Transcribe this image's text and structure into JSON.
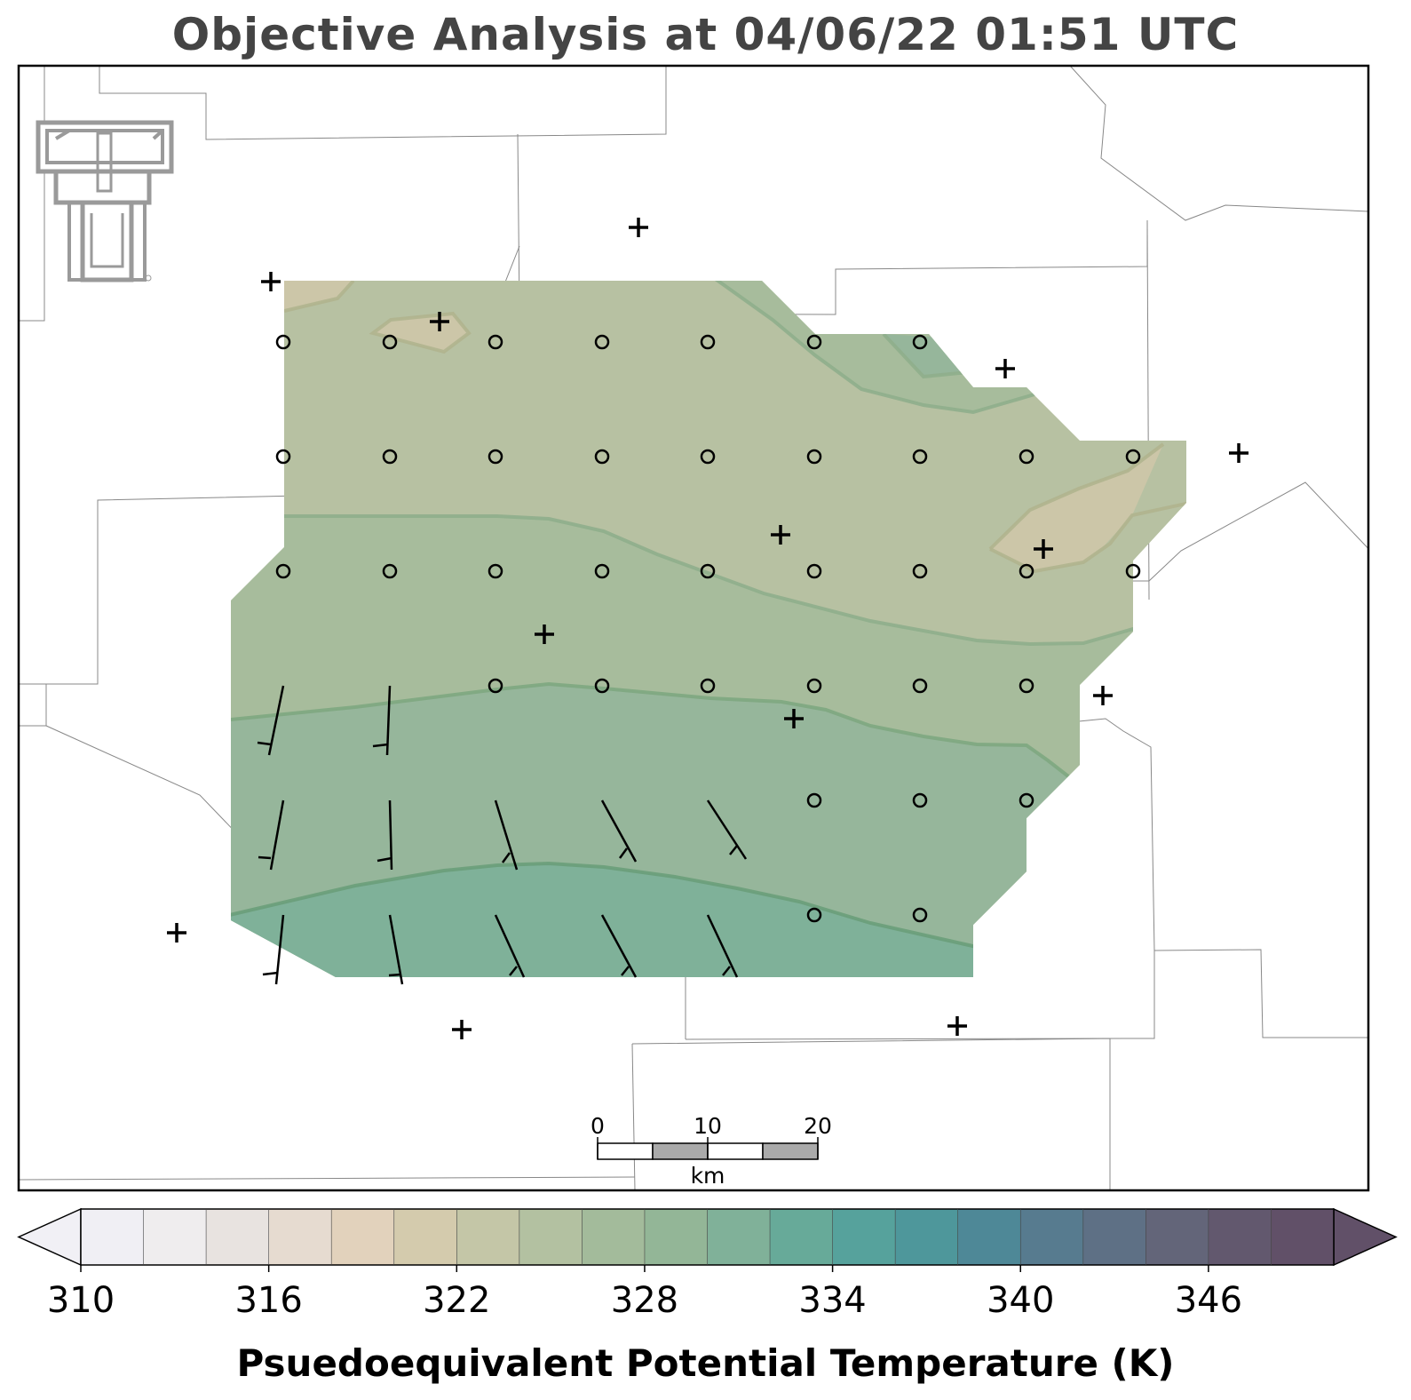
{
  "title": "Objective Analysis at 04/06/22 01:51 UTC",
  "colorbar": {
    "label": "Psuedoequivalent Potential Temperature (K)",
    "min": 310,
    "max": 350,
    "step": 2,
    "tick_values": [
      310,
      316,
      322,
      328,
      334,
      340,
      346
    ],
    "tick_labels": [
      "310",
      "316",
      "322",
      "328",
      "334",
      "340",
      "346"
    ],
    "colors": [
      "#f0eff4",
      "#efedee",
      "#e8e3e0",
      "#e6dbd0",
      "#e2d2bc",
      "#d4cbad",
      "#c4c6a7",
      "#b3c1a1",
      "#a3bb9b",
      "#93b697",
      "#80b199",
      "#67aa99",
      "#56a29c",
      "#4e979b",
      "#4e8897",
      "#577b8f",
      "#5e7085",
      "#636579",
      "#62586e",
      "#615068"
    ],
    "extend_below_color": "#f1f0f5",
    "extend_above_color": "#615068"
  },
  "scale_bar": {
    "unit": "km",
    "labels": [
      "0",
      "10",
      "20"
    ]
  },
  "logo": {
    "name": "texas-tech-double-t-logo"
  },
  "analysis_region": {
    "contour_levels": [
      320,
      322,
      324,
      326,
      328
    ],
    "fill_colors": {
      "320": "#ccc6a8",
      "322": "#b7c1a2",
      "324": "#a7bc9c",
      "326": "#96b69b",
      "328": "#7fb199"
    }
  },
  "stations": [
    {
      "id": "s1",
      "marker": "+"
    },
    {
      "id": "s2",
      "marker": "+"
    },
    {
      "id": "s3",
      "marker": "+"
    },
    {
      "id": "s4",
      "marker": "+"
    },
    {
      "id": "s5",
      "marker": "+"
    },
    {
      "id": "s6",
      "marker": "+"
    },
    {
      "id": "s7",
      "marker": "+"
    },
    {
      "id": "s8",
      "marker": "+"
    },
    {
      "id": "s9",
      "marker": "+"
    },
    {
      "id": "s10",
      "marker": "+"
    },
    {
      "id": "s11",
      "marker": "+"
    },
    {
      "id": "s12",
      "marker": "+"
    },
    {
      "id": "s13",
      "marker": "+"
    },
    {
      "id": "s14",
      "marker": "+"
    }
  ],
  "wind_field": {
    "calm_symbol": "circle",
    "barb_symbol": "wind-barb"
  }
}
